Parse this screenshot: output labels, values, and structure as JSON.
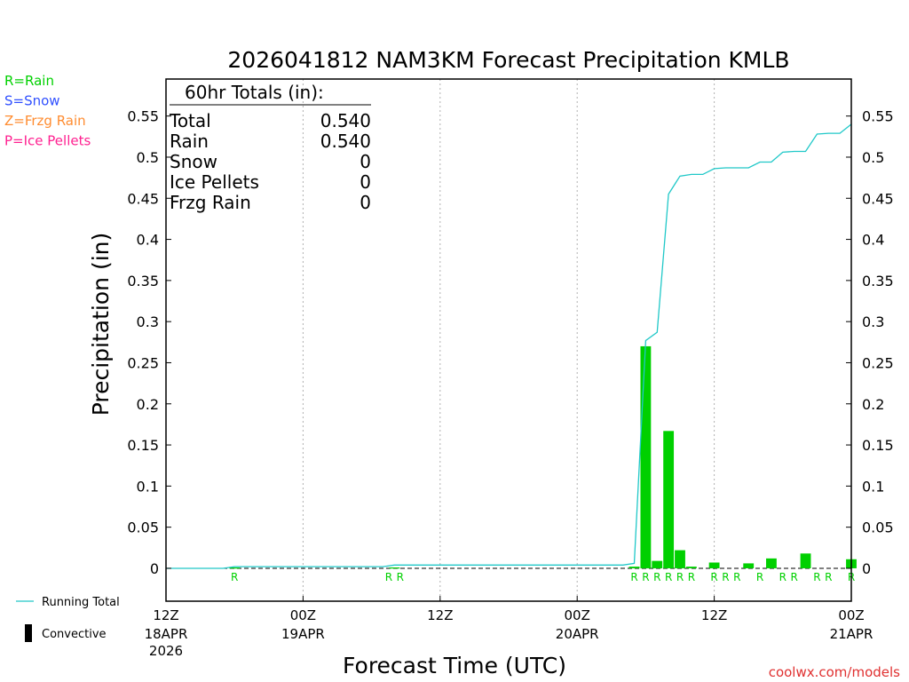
{
  "chart_data": {
    "type": "bar",
    "title": "2026041812 NAM3KM Forecast Precipitation KMLB",
    "xlabel": "Forecast Time (UTC)",
    "ylabel": "Precipitation (in)",
    "ylim": [
      -0.04,
      0.595
    ],
    "xlim": [
      0,
      60
    ],
    "y_ticks": [
      "0",
      "0.05",
      "0.1",
      "0.15",
      "0.2",
      "0.25",
      "0.3",
      "0.35",
      "0.4",
      "0.45",
      "0.5",
      "0.55"
    ],
    "x_ticks": [
      {
        "x": 0,
        "label": "12Z",
        "date": "18APR",
        "year": "2026"
      },
      {
        "x": 12,
        "label": "00Z",
        "date": "19APR",
        "year": ""
      },
      {
        "x": 24,
        "label": "12Z",
        "date": "",
        "year": ""
      },
      {
        "x": 36,
        "label": "00Z",
        "date": "20APR",
        "year": ""
      },
      {
        "x": 48,
        "label": "12Z",
        "date": "",
        "year": ""
      },
      {
        "x": 60,
        "label": "00Z",
        "date": "21APR",
        "year": ""
      }
    ],
    "legend_types": [
      {
        "text": "R=Rain",
        "color": "#00d000"
      },
      {
        "text": "S=Snow",
        "color": "#3050ff"
      },
      {
        "text": "Z=Frzg Rain",
        "color": "#ff8c30"
      },
      {
        "text": "P=Ice Pellets",
        "color": "#ff2090"
      }
    ],
    "legend_series": [
      {
        "text": "Running Total",
        "color": "#20c8c8"
      },
      {
        "text": "Convective",
        "color": "#000000"
      }
    ],
    "totals_box": {
      "header": "60hr Totals (in):",
      "rows": [
        {
          "label": "Total",
          "value": "0.540"
        },
        {
          "label": "Rain",
          "value": "0.540"
        },
        {
          "label": "Snow",
          "value": "0"
        },
        {
          "label": "Ice Pellets",
          "value": "0"
        },
        {
          "label": "Frzg Rain",
          "value": "0"
        }
      ]
    },
    "series": [
      {
        "name": "Running Total",
        "color": "#20c8c8",
        "points": [
          [
            0,
            0
          ],
          [
            5,
            0
          ],
          [
            6,
            0.002
          ],
          [
            19,
            0.002
          ],
          [
            20,
            0.004
          ],
          [
            40,
            0.004
          ],
          [
            41,
            0.006
          ],
          [
            42,
            0.277
          ],
          [
            43,
            0.287
          ],
          [
            44,
            0.455
          ],
          [
            45,
            0.477
          ],
          [
            46,
            0.479
          ],
          [
            47,
            0.479
          ],
          [
            48,
            0.486
          ],
          [
            49,
            0.487
          ],
          [
            50,
            0.487
          ],
          [
            51,
            0.487
          ],
          [
            52,
            0.494
          ],
          [
            53,
            0.494
          ],
          [
            54,
            0.506
          ],
          [
            55,
            0.507
          ],
          [
            56,
            0.507
          ],
          [
            57,
            0.528
          ],
          [
            58,
            0.529
          ],
          [
            59,
            0.529
          ],
          [
            60,
            0.54
          ]
        ]
      },
      {
        "name": "Precipitation",
        "color": "#00d000",
        "bars": [
          [
            6,
            0.001
          ],
          [
            20,
            0.001
          ],
          [
            41,
            0.002
          ],
          [
            42,
            0.27
          ],
          [
            43,
            0.009
          ],
          [
            44,
            0.167
          ],
          [
            45,
            0.022
          ],
          [
            46,
            0.002
          ],
          [
            48,
            0.007
          ],
          [
            51,
            0.006
          ],
          [
            53,
            0.012
          ],
          [
            56,
            0.018
          ],
          [
            60,
            0.011
          ]
        ]
      }
    ],
    "type_markers": [
      {
        "x": 6,
        "text": "R"
      },
      {
        "x": 19.5,
        "text": "R"
      },
      {
        "x": 20.5,
        "text": "R"
      },
      {
        "x": 41,
        "text": "R"
      },
      {
        "x": 42,
        "text": "R"
      },
      {
        "x": 43,
        "text": "R"
      },
      {
        "x": 44,
        "text": "R"
      },
      {
        "x": 45,
        "text": "R"
      },
      {
        "x": 46,
        "text": "R"
      },
      {
        "x": 48,
        "text": "R"
      },
      {
        "x": 49,
        "text": "R"
      },
      {
        "x": 50,
        "text": "R"
      },
      {
        "x": 52,
        "text": "R"
      },
      {
        "x": 54,
        "text": "R"
      },
      {
        "x": 55,
        "text": "R"
      },
      {
        "x": 57,
        "text": "R"
      },
      {
        "x": 58,
        "text": "R"
      },
      {
        "x": 60,
        "text": "R"
      }
    ],
    "marker_color": "#00d000",
    "credit": "coolwx.com/models",
    "credit_color": "#e03030",
    "grid": "vertical dotted at 12-hour ticks"
  }
}
